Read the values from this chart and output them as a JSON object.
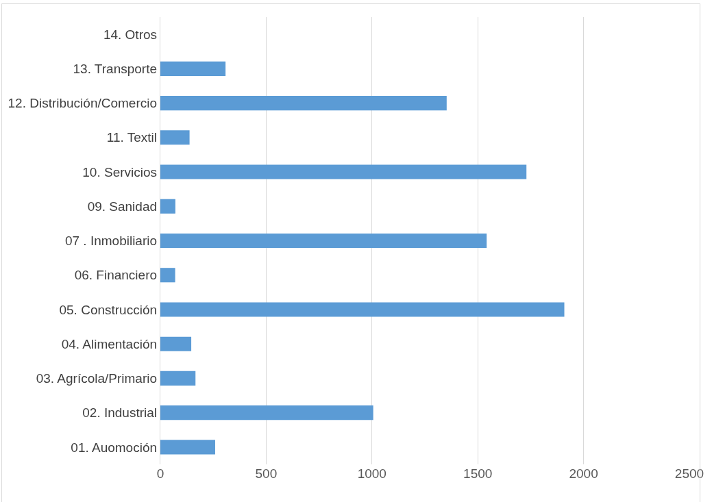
{
  "chart_data": {
    "type": "bar",
    "orientation": "horizontal",
    "categories": [
      "14. Otros",
      "13. Transporte",
      "12. Distribución/Comercio",
      "11. Textil",
      "10. Servicios",
      "09. Sanidad",
      "07 . Inmobiliario",
      "06. Financiero",
      "05. Construcción",
      "04. Alimentación",
      "03. Agrícola/Primario",
      "02. Industrial",
      "01. Auomoción"
    ],
    "values": [
      0,
      308,
      1353,
      138,
      1730,
      71,
      1542,
      70,
      1909,
      146,
      166,
      1006,
      259
    ],
    "color": "#5b9bd5",
    "xlim": [
      0,
      2500
    ],
    "xticks": [
      0,
      500,
      1000,
      1500,
      2000,
      2500
    ],
    "grid": "x"
  }
}
